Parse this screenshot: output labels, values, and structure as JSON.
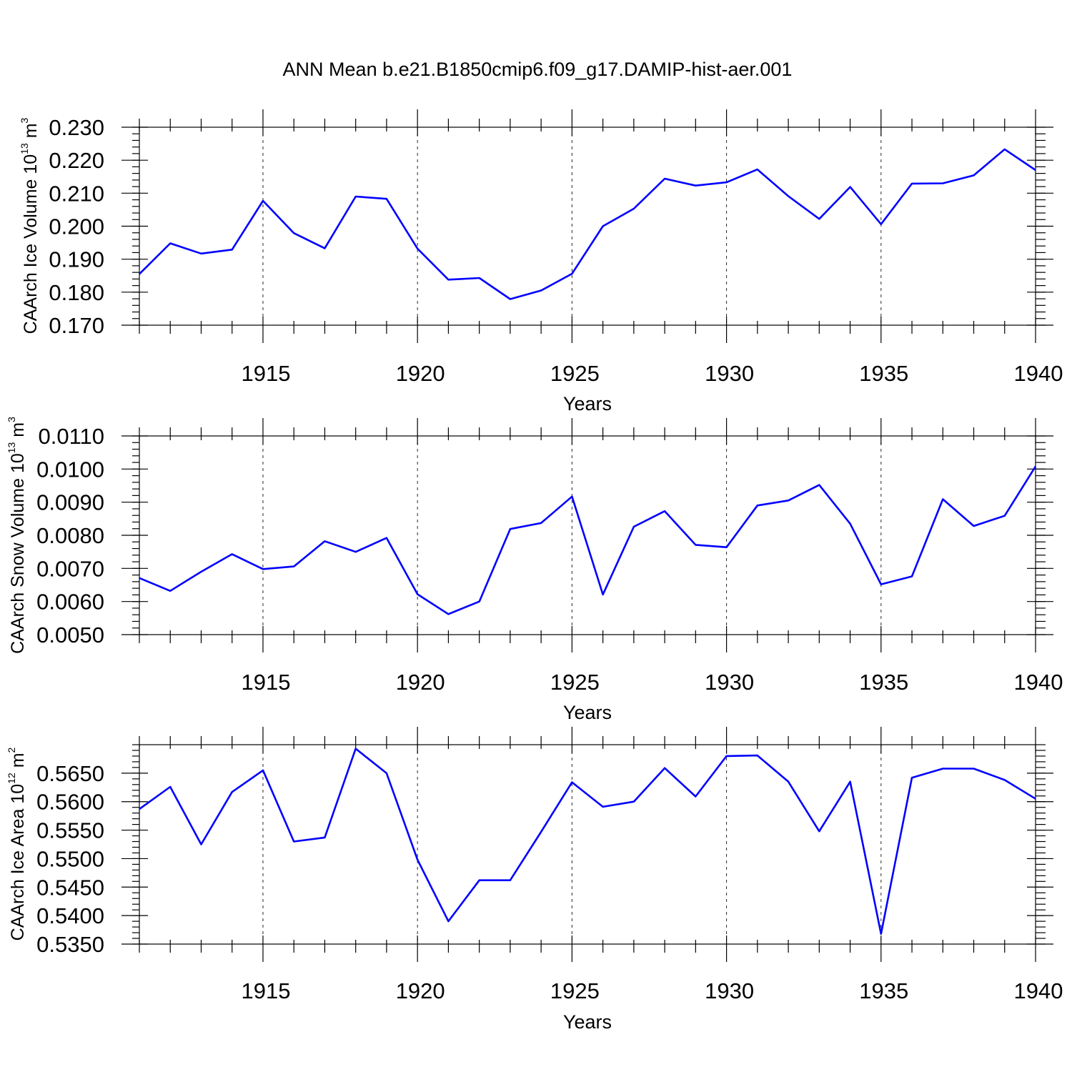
{
  "chart_data": [
    {
      "type": "line",
      "title": "ANN Mean b.e21.B1850cmip6.f09_g17.DAMIP-hist-aer.001",
      "xlabel": "Years",
      "ylabel": {
        "main": "CAArch Ice Volume 10",
        "exp": "13",
        "unit": " m",
        "unit_exp": "3"
      },
      "xlim": [
        1911,
        1940
      ],
      "ylim": [
        0.17,
        0.23
      ],
      "x_ticks": [
        1915,
        1920,
        1925,
        1930,
        1935,
        1940
      ],
      "y_ticks": [
        0.17,
        0.18,
        0.19,
        0.2,
        0.21,
        0.22,
        0.23
      ],
      "y_tick_labels": [
        "0.170",
        "0.180",
        "0.190",
        "0.200",
        "0.210",
        "0.220",
        "0.230"
      ],
      "y_minor_step": 0.002,
      "color": "#0000ff",
      "series": [
        {
          "name": "CAArch Ice Volume",
          "x": [
            1911,
            1912,
            1913,
            1914,
            1915,
            1916,
            1917,
            1918,
            1919,
            1920,
            1921,
            1922,
            1923,
            1924,
            1925,
            1926,
            1927,
            1928,
            1929,
            1930,
            1931,
            1932,
            1933,
            1934,
            1935,
            1936,
            1937,
            1938,
            1939,
            1940
          ],
          "values": [
            0.1855,
            0.1948,
            0.1917,
            0.1929,
            0.2077,
            0.1979,
            0.1933,
            0.209,
            0.2083,
            0.1932,
            0.1838,
            0.1843,
            0.1779,
            0.1805,
            0.1856,
            0.2,
            0.2053,
            0.2144,
            0.2123,
            0.2133,
            0.2172,
            0.2091,
            0.2022,
            0.2119,
            0.2006,
            0.2129,
            0.213,
            0.2154,
            0.2233,
            0.217
          ]
        }
      ]
    },
    {
      "type": "line",
      "xlabel": "Years",
      "ylabel": {
        "main": "CAArch Snow Volume 10",
        "exp": "13",
        "unit": " m",
        "unit_exp": "3"
      },
      "xlim": [
        1911,
        1940
      ],
      "ylim": [
        0.005,
        0.011
      ],
      "x_ticks": [
        1915,
        1920,
        1925,
        1930,
        1935,
        1940
      ],
      "y_ticks": [
        0.005,
        0.006,
        0.007,
        0.008,
        0.009,
        0.01,
        0.011
      ],
      "y_tick_labels": [
        "0.0050",
        "0.0060",
        "0.0070",
        "0.0080",
        "0.0090",
        "0.0100",
        "0.0110"
      ],
      "y_minor_step": 0.0002,
      "color": "#0000ff",
      "series": [
        {
          "name": "CAArch Snow Volume",
          "x": [
            1911,
            1912,
            1913,
            1914,
            1915,
            1916,
            1917,
            1918,
            1919,
            1920,
            1921,
            1922,
            1923,
            1924,
            1925,
            1926,
            1927,
            1928,
            1929,
            1930,
            1931,
            1932,
            1933,
            1934,
            1935,
            1936,
            1937,
            1938,
            1939,
            1940
          ],
          "values": [
            0.00671,
            0.00632,
            0.0069,
            0.00743,
            0.00698,
            0.00706,
            0.00782,
            0.0075,
            0.00792,
            0.00622,
            0.00562,
            0.006,
            0.00819,
            0.00837,
            0.00917,
            0.00621,
            0.00826,
            0.00873,
            0.00771,
            0.00764,
            0.0089,
            0.00905,
            0.00952,
            0.00835,
            0.00652,
            0.00676,
            0.00909,
            0.00828,
            0.00859,
            0.01008
          ]
        }
      ]
    },
    {
      "type": "line",
      "xlabel": "Years",
      "ylabel": {
        "main": "CAArch Ice Area 10",
        "exp": "12",
        "unit": " m",
        "unit_exp": "2"
      },
      "xlim": [
        1911,
        1940
      ],
      "ylim": [
        0.535,
        0.57
      ],
      "x_ticks": [
        1915,
        1920,
        1925,
        1930,
        1935,
        1940
      ],
      "y_ticks": [
        0.535,
        0.54,
        0.545,
        0.55,
        0.555,
        0.56,
        0.565
      ],
      "y_tick_labels": [
        "0.5350",
        "0.5400",
        "0.5450",
        "0.5500",
        "0.5550",
        "0.5600",
        "0.5650"
      ],
      "y_minor_step": 0.001,
      "color": "#0000ff",
      "series": [
        {
          "name": "CAArch Ice Area",
          "x": [
            1911,
            1912,
            1913,
            1914,
            1915,
            1916,
            1917,
            1918,
            1919,
            1920,
            1921,
            1922,
            1923,
            1924,
            1925,
            1926,
            1927,
            1928,
            1929,
            1930,
            1931,
            1932,
            1933,
            1934,
            1935,
            1936,
            1937,
            1938,
            1939,
            1940
          ],
          "values": [
            0.5587,
            0.5626,
            0.5525,
            0.5617,
            0.5655,
            0.553,
            0.5537,
            0.5693,
            0.565,
            0.5498,
            0.539,
            0.5462,
            0.5462,
            0.5547,
            0.5634,
            0.5591,
            0.56,
            0.5659,
            0.5609,
            0.568,
            0.5681,
            0.5635,
            0.5548,
            0.5635,
            0.5368,
            0.5642,
            0.5658,
            0.5658,
            0.5638,
            0.5605
          ]
        }
      ]
    }
  ]
}
